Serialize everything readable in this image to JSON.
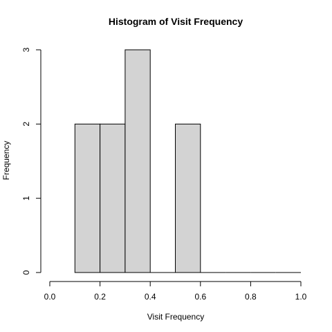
{
  "chart_data": {
    "type": "bar",
    "title": "Histogram of Visit Frequency",
    "xlabel": "Visit Frequency",
    "ylabel": "Frequency",
    "bins": [
      {
        "x0": 0.1,
        "x1": 0.2,
        "count": 2
      },
      {
        "x0": 0.2,
        "x1": 0.3,
        "count": 2
      },
      {
        "x0": 0.3,
        "x1": 0.4,
        "count": 3
      },
      {
        "x0": 0.4,
        "x1": 0.5,
        "count": 0
      },
      {
        "x0": 0.5,
        "x1": 0.6,
        "count": 2
      },
      {
        "x0": 0.6,
        "x1": 0.7,
        "count": 0
      },
      {
        "x0": 0.7,
        "x1": 0.8,
        "count": 0
      },
      {
        "x0": 0.8,
        "x1": 0.9,
        "count": 0
      },
      {
        "x0": 0.9,
        "x1": 1.0,
        "count": 0
      }
    ],
    "xlim": [
      0,
      1
    ],
    "ylim": [
      0,
      3
    ],
    "xticks": [
      "0.0",
      "0.2",
      "0.4",
      "0.6",
      "0.8",
      "1.0"
    ],
    "yticks": [
      "0",
      "1",
      "2",
      "3"
    ],
    "grid": false,
    "bar_color": "#d3d3d3",
    "outline_color": "#000000"
  }
}
